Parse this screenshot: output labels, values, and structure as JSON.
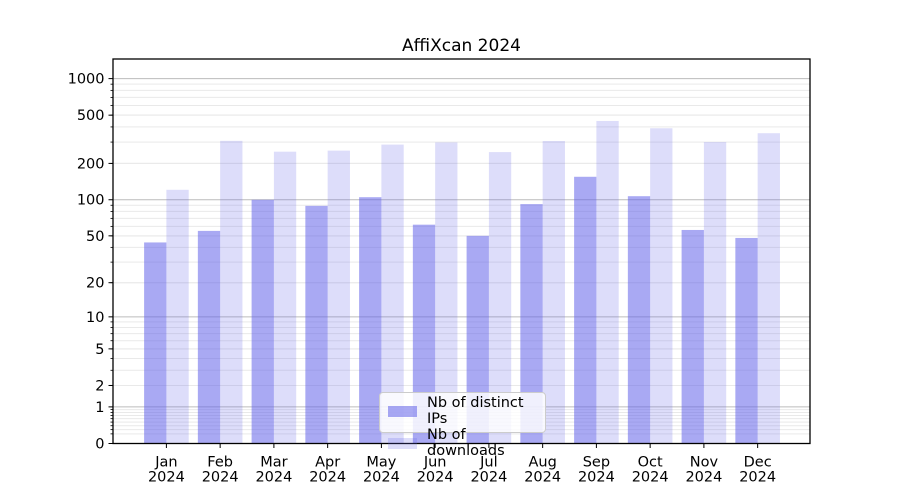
{
  "title": "AffiXcan 2024",
  "legend": {
    "items": [
      {
        "label": "Nb of distinct IPs",
        "color": "rgba(98,98,233,0.55)"
      },
      {
        "label": "Nb of downloads",
        "color": "rgba(98,98,233,0.22)"
      }
    ]
  },
  "chart_data": {
    "type": "bar",
    "title": "AffiXcan 2024",
    "categories": [
      "Jan 2024",
      "Feb 2024",
      "Mar 2024",
      "Apr 2024",
      "May 2024",
      "Jun 2024",
      "Jul 2024",
      "Aug 2024",
      "Sep 2024",
      "Oct 2024",
      "Nov 2024",
      "Dec 2024"
    ],
    "series": [
      {
        "name": "Nb of distinct IPs",
        "color": "rgba(98,98,233,0.55)",
        "values": [
          44,
          55,
          100,
          89,
          105,
          62,
          50,
          92,
          155,
          107,
          56,
          48
        ]
      },
      {
        "name": "Nb of downloads",
        "color": "rgba(98,98,233,0.22)",
        "values": [
          121,
          307,
          250,
          255,
          286,
          298,
          248,
          306,
          448,
          390,
          300,
          355
        ]
      }
    ],
    "yscale": "log1p",
    "y_ticks": [
      0,
      1,
      2,
      5,
      10,
      20,
      50,
      100,
      200,
      500,
      1000
    ],
    "decade_gridlines": [
      1,
      10,
      100,
      1000
    ],
    "ylim": [
      0,
      1450
    ],
    "xlabel": "",
    "ylabel": "",
    "grid": true,
    "legend_position": "lower center",
    "colors": {
      "grid_minor": "#e9e9e9",
      "grid_decade": "#bcbcbc",
      "axis": "#000000",
      "background": "#ffffff"
    }
  }
}
